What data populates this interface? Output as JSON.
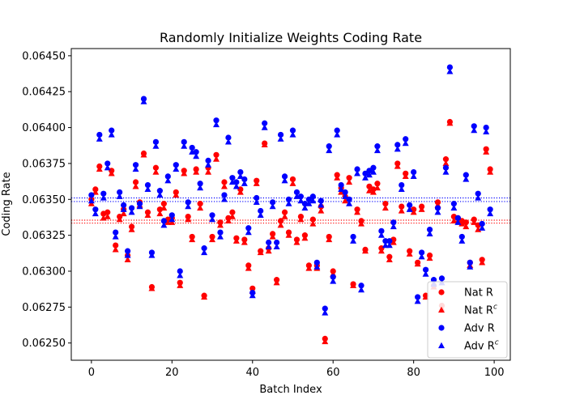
{
  "chart_data": {
    "type": "scatter",
    "title": "Randomly Initialize Weights Coding Rate",
    "xlabel": "Batch Index",
    "ylabel": "Coding Rate",
    "xlim": [
      -5,
      104
    ],
    "ylim": [
      0.06238,
      0.06455
    ],
    "xticks": [
      0,
      20,
      40,
      60,
      80,
      100
    ],
    "yticks": [
      0.0625,
      0.06275,
      0.063,
      0.06325,
      0.0635,
      0.06375,
      0.064,
      0.06425,
      0.0645
    ],
    "ytick_labels": [
      "0.06250",
      "0.06275",
      "0.06300",
      "0.06325",
      "0.06350",
      "0.06375",
      "0.06400",
      "0.06425",
      "0.06450"
    ],
    "xtick_labels": [
      "0",
      "20",
      "40",
      "60",
      "80",
      "100"
    ],
    "grid": false,
    "legend_position": "lower-right",
    "x": [
      0,
      1,
      2,
      3,
      4,
      5,
      6,
      7,
      8,
      9,
      10,
      11,
      12,
      13,
      14,
      15,
      16,
      17,
      18,
      19,
      20,
      21,
      22,
      23,
      24,
      25,
      26,
      27,
      28,
      29,
      30,
      31,
      32,
      33,
      34,
      35,
      36,
      37,
      38,
      39,
      40,
      41,
      42,
      43,
      44,
      45,
      46,
      47,
      48,
      49,
      50,
      51,
      52,
      53,
      54,
      55,
      56,
      57,
      58,
      59,
      60,
      61,
      62,
      63,
      64,
      65,
      66,
      67,
      68,
      69,
      70,
      71,
      72,
      73,
      74,
      75,
      76,
      77,
      78,
      79,
      80,
      81,
      82,
      83,
      84,
      85,
      86,
      87,
      88,
      89,
      90,
      91,
      92,
      93,
      94,
      95,
      96,
      97,
      98,
      99
    ],
    "series": [
      {
        "name": "Nat R",
        "marker": "circle",
        "color": "#ff0000",
        "values": [
          0.0635,
          0.06357,
          0.06373,
          0.0634,
          0.06341,
          0.0637,
          0.06318,
          0.06338,
          0.06343,
          0.06311,
          0.06331,
          0.06362,
          0.06348,
          0.06382,
          0.06341,
          0.06289,
          0.06372,
          0.06343,
          0.06347,
          0.06336,
          0.06337,
          0.06355,
          0.06292,
          0.0637,
          0.06338,
          0.06324,
          0.06371,
          0.06347,
          0.06283,
          0.06372,
          0.06324,
          0.06381,
          0.06334,
          0.06362,
          0.06337,
          0.06341,
          0.06323,
          0.06357,
          0.06322,
          0.06304,
          0.06288,
          0.06363,
          0.06314,
          0.06389,
          0.06316,
          0.06326,
          0.06294,
          0.06335,
          0.06341,
          0.06327,
          0.06364,
          0.06322,
          0.06338,
          0.06325,
          0.06304,
          0.06336,
          0.06304,
          0.06345,
          0.06253,
          0.06324,
          0.063,
          0.06367,
          0.06358,
          0.06352,
          0.06365,
          0.06291,
          0.06343,
          0.06335,
          0.06315,
          0.06359,
          0.06357,
          0.06361,
          0.06316,
          0.06347,
          0.0631,
          0.06322,
          0.06375,
          0.06345,
          0.06368,
          0.06314,
          0.06343,
          0.06306,
          0.06345,
          0.06283,
          0.06311,
          0.0629,
          0.06348,
          0.06276,
          0.06378,
          0.06404,
          0.06338,
          0.06337,
          0.06335,
          0.06334,
          0.06306,
          0.06336,
          0.06332,
          0.06308,
          0.06385,
          0.06371
        ]
      },
      {
        "name": "Nat R^c",
        "marker": "triangle",
        "color": "#ff0000",
        "values": [
          0.06347,
          0.06355,
          0.06371,
          0.06337,
          0.06338,
          0.06368,
          0.06315,
          0.06336,
          0.0634,
          0.06308,
          0.06329,
          0.06359,
          0.06346,
          0.06381,
          0.06339,
          0.06288,
          0.06369,
          0.0634,
          0.06344,
          0.06334,
          0.06334,
          0.06353,
          0.0629,
          0.06368,
          0.06336,
          0.06322,
          0.06369,
          0.06344,
          0.06282,
          0.06369,
          0.06322,
          0.06378,
          0.06332,
          0.06359,
          0.06335,
          0.06338,
          0.06321,
          0.06355,
          0.0632,
          0.06302,
          0.06286,
          0.06361,
          0.06313,
          0.06388,
          0.06314,
          0.06324,
          0.06292,
          0.06332,
          0.06338,
          0.06325,
          0.06361,
          0.0632,
          0.06336,
          0.06323,
          0.06302,
          0.06333,
          0.06302,
          0.06342,
          0.06251,
          0.06322,
          0.06298,
          0.06365,
          0.06355,
          0.06349,
          0.06362,
          0.0629,
          0.06341,
          0.06333,
          0.06314,
          0.06356,
          0.06355,
          0.06358,
          0.06314,
          0.06344,
          0.06308,
          0.0632,
          0.06373,
          0.06342,
          0.06366,
          0.06312,
          0.06341,
          0.06305,
          0.06343,
          0.06282,
          0.06309,
          0.06289,
          0.06346,
          0.06274,
          0.06375,
          0.06403,
          0.06335,
          0.06335,
          0.06333,
          0.06331,
          0.06304,
          0.06334,
          0.06329,
          0.06306,
          0.06383,
          0.06369
        ]
      },
      {
        "name": "Adv R",
        "marker": "circle",
        "color": "#0000ff",
        "values": [
          0.06353,
          0.06343,
          0.06395,
          0.06354,
          0.06375,
          0.06398,
          0.06327,
          0.06355,
          0.06346,
          0.06314,
          0.06344,
          0.06374,
          0.06347,
          0.0642,
          0.0636,
          0.06313,
          0.0639,
          0.06356,
          0.06335,
          0.06366,
          0.06339,
          0.06374,
          0.063,
          0.0639,
          0.06348,
          0.06386,
          0.06383,
          0.06361,
          0.06316,
          0.06377,
          0.06339,
          0.06405,
          0.06327,
          0.06353,
          0.06393,
          0.06365,
          0.06362,
          0.06369,
          0.06364,
          0.0633,
          0.06285,
          0.06351,
          0.06342,
          0.06403,
          0.0632,
          0.06348,
          0.0632,
          0.06395,
          0.06366,
          0.0635,
          0.06398,
          0.06355,
          0.06352,
          0.06347,
          0.0635,
          0.06352,
          0.06306,
          0.06349,
          0.06274,
          0.06387,
          0.06296,
          0.06398,
          0.0636,
          0.06355,
          0.0635,
          0.06324,
          0.06371,
          0.0629,
          0.06368,
          0.0637,
          0.06372,
          0.06387,
          0.06328,
          0.06321,
          0.06321,
          0.06334,
          0.06388,
          0.0636,
          0.06392,
          0.06346,
          0.06369,
          0.06282,
          0.06313,
          0.06301,
          0.06329,
          0.06294,
          0.06344,
          0.06295,
          0.06372,
          0.06442,
          0.06347,
          0.06337,
          0.06324,
          0.06367,
          0.06306,
          0.06401,
          0.06354,
          0.06333,
          0.064,
          0.06343
        ]
      },
      {
        "name": "Adv R^c",
        "marker": "triangle",
        "color": "#0000ff",
        "values": [
          0.06349,
          0.0634,
          0.06392,
          0.06351,
          0.06372,
          0.06395,
          0.06324,
          0.06352,
          0.06343,
          0.06311,
          0.06341,
          0.06371,
          0.06345,
          0.06418,
          0.06357,
          0.06311,
          0.06387,
          0.06353,
          0.06332,
          0.06363,
          0.06336,
          0.06371,
          0.06297,
          0.06387,
          0.06345,
          0.06383,
          0.0638,
          0.06358,
          0.06313,
          0.06374,
          0.06336,
          0.06402,
          0.06324,
          0.0635,
          0.0639,
          0.06362,
          0.06359,
          0.06366,
          0.06361,
          0.06327,
          0.06283,
          0.06348,
          0.06339,
          0.064,
          0.06317,
          0.06345,
          0.06317,
          0.06392,
          0.06363,
          0.06347,
          0.06395,
          0.06352,
          0.06349,
          0.06344,
          0.06347,
          0.06349,
          0.06303,
          0.06346,
          0.06271,
          0.06384,
          0.06293,
          0.06395,
          0.06357,
          0.06352,
          0.06347,
          0.06321,
          0.06368,
          0.06287,
          0.06365,
          0.06367,
          0.06369,
          0.06384,
          0.06325,
          0.06318,
          0.06318,
          0.06331,
          0.06385,
          0.06357,
          0.06389,
          0.06343,
          0.06366,
          0.06279,
          0.0631,
          0.06298,
          0.06326,
          0.06291,
          0.06341,
          0.06292,
          0.06369,
          0.06439,
          0.06344,
          0.06334,
          0.06321,
          0.06364,
          0.06303,
          0.06398,
          0.06351,
          0.0633,
          0.06397,
          0.0634
        ]
      }
    ],
    "hlines": [
      {
        "series": "Nat R",
        "y": 0.063355,
        "color": "#ff0000",
        "style": "dotted"
      },
      {
        "series": "Nat R^c",
        "y": 0.063335,
        "color": "#ff0000",
        "style": "dotted"
      },
      {
        "series": "Adv R",
        "y": 0.06351,
        "color": "#0000ff",
        "style": "dotted"
      },
      {
        "series": "Adv R^c",
        "y": 0.063485,
        "color": "#0000ff",
        "style": "dotted"
      }
    ],
    "legend": [
      {
        "label": "Nat R",
        "sup": "",
        "marker": "circle",
        "color": "#ff0000"
      },
      {
        "label": "Nat R",
        "sup": "c",
        "marker": "triangle",
        "color": "#ff0000"
      },
      {
        "label": "Adv R",
        "sup": "",
        "marker": "circle",
        "color": "#0000ff"
      },
      {
        "label": "Adv R",
        "sup": "c",
        "marker": "triangle",
        "color": "#0000ff"
      }
    ]
  }
}
